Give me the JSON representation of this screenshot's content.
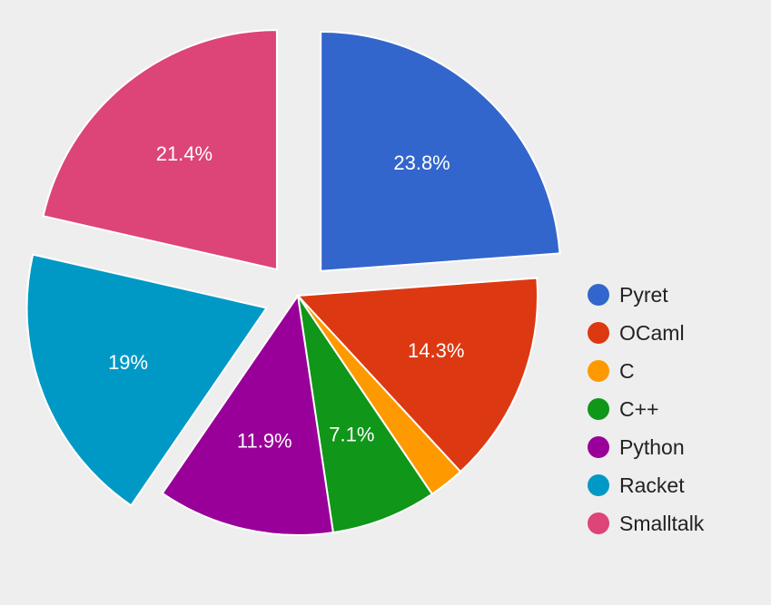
{
  "chart_data": {
    "type": "pie",
    "title": "",
    "legend_position": "right",
    "slices": [
      {
        "name": "Pyret",
        "value": 23.8,
        "label": "23.8%",
        "color": "#3366cc",
        "exploded": true
      },
      {
        "name": "OCaml",
        "value": 14.3,
        "label": "14.3%",
        "color": "#dc3912",
        "exploded": false
      },
      {
        "name": "C",
        "value": 2.4,
        "label": "",
        "color": "#ff9900",
        "exploded": false
      },
      {
        "name": "C++",
        "value": 7.1,
        "label": "7.1%",
        "color": "#109618",
        "exploded": false
      },
      {
        "name": "Python",
        "value": 11.9,
        "label": "11.9%",
        "color": "#990099",
        "exploded": false
      },
      {
        "name": "Racket",
        "value": 19,
        "label": "19%",
        "color": "#0099c6",
        "exploded": true
      },
      {
        "name": "Smalltalk",
        "value": 21.4,
        "label": "21.4%",
        "color": "#dd4477",
        "exploded": true
      }
    ]
  }
}
